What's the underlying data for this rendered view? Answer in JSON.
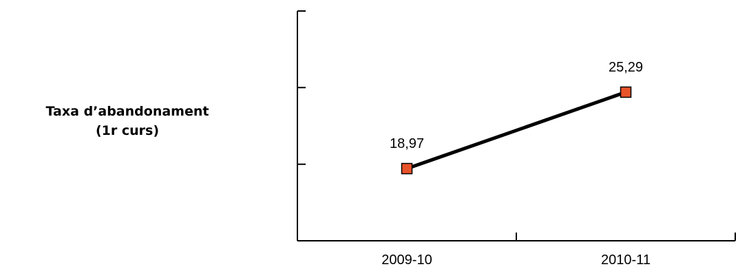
{
  "chart_data": {
    "type": "line",
    "series_label_lines": [
      "Taxa d’abandonament",
      "(1r curs)"
    ],
    "categories": [
      "2009-10",
      "2010-11"
    ],
    "series": [
      {
        "values": [
          18.97,
          25.29
        ],
        "value_labels": [
          "18,97",
          "25,29"
        ]
      }
    ],
    "ylim": [
      13,
      32
    ],
    "yticks": [
      13,
      19.33,
      25.67,
      32
    ],
    "show_y_tick_labels": false,
    "grid": false,
    "legend": "none",
    "line_color": "#000000",
    "marker": "square",
    "marker_color": "#e8532a",
    "marker_edge_color": "#000000"
  }
}
